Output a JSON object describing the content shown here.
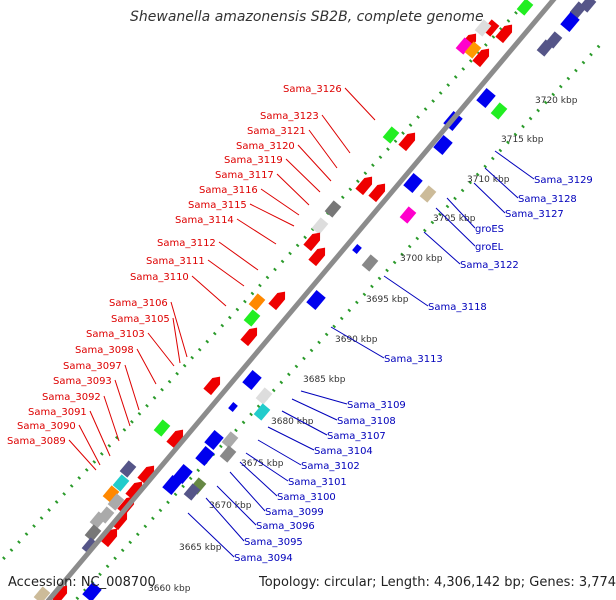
{
  "title": "Shewanella amazonensis SB2B, complete genome",
  "accession_text": "Accession: NC_008700",
  "topology_text": "Topology: circular; Length: 4,306,142 bp; Genes: 3,774",
  "colors": {
    "axis": "#8c8c8c",
    "dots": "#2a9a2a",
    "left_label": "#dd0000",
    "right_label": "#0000bb",
    "tick_text": "#333333"
  },
  "kbp_ticks": [
    "3660 kbp",
    "3665 kbp",
    "3670 kbp",
    "3675 kbp",
    "3680 kbp",
    "3685 kbp",
    "3690 kbp",
    "3695 kbp",
    "3700 kbp",
    "3705 kbp",
    "3710 kbp",
    "3715 kbp",
    "3720 kbp"
  ],
  "left_labels": [
    "Sama_3126",
    "Sama_3123",
    "Sama_3121",
    "Sama_3120",
    "Sama_3119",
    "Sama_3117",
    "Sama_3116",
    "Sama_3115",
    "Sama_3114",
    "Sama_3112",
    "Sama_3111",
    "Sama_3110",
    "Sama_3106",
    "Sama_3105",
    "Sama_3103",
    "Sama_3098",
    "Sama_3097",
    "Sama_3093",
    "Sama_3092",
    "Sama_3091",
    "Sama_3090",
    "Sama_3089"
  ],
  "right_labels": [
    "Sama_3129",
    "Sama_3128",
    "Sama_3127",
    "groES",
    "groEL",
    "Sama_3122",
    "Sama_3118",
    "Sama_3113",
    "Sama_3109",
    "Sama_3108",
    "Sama_3107",
    "Sama_3104",
    "Sama_3102",
    "Sama_3101",
    "Sama_3100",
    "Sama_3099",
    "Sama_3096",
    "Sama_3095",
    "Sama_3094"
  ]
}
